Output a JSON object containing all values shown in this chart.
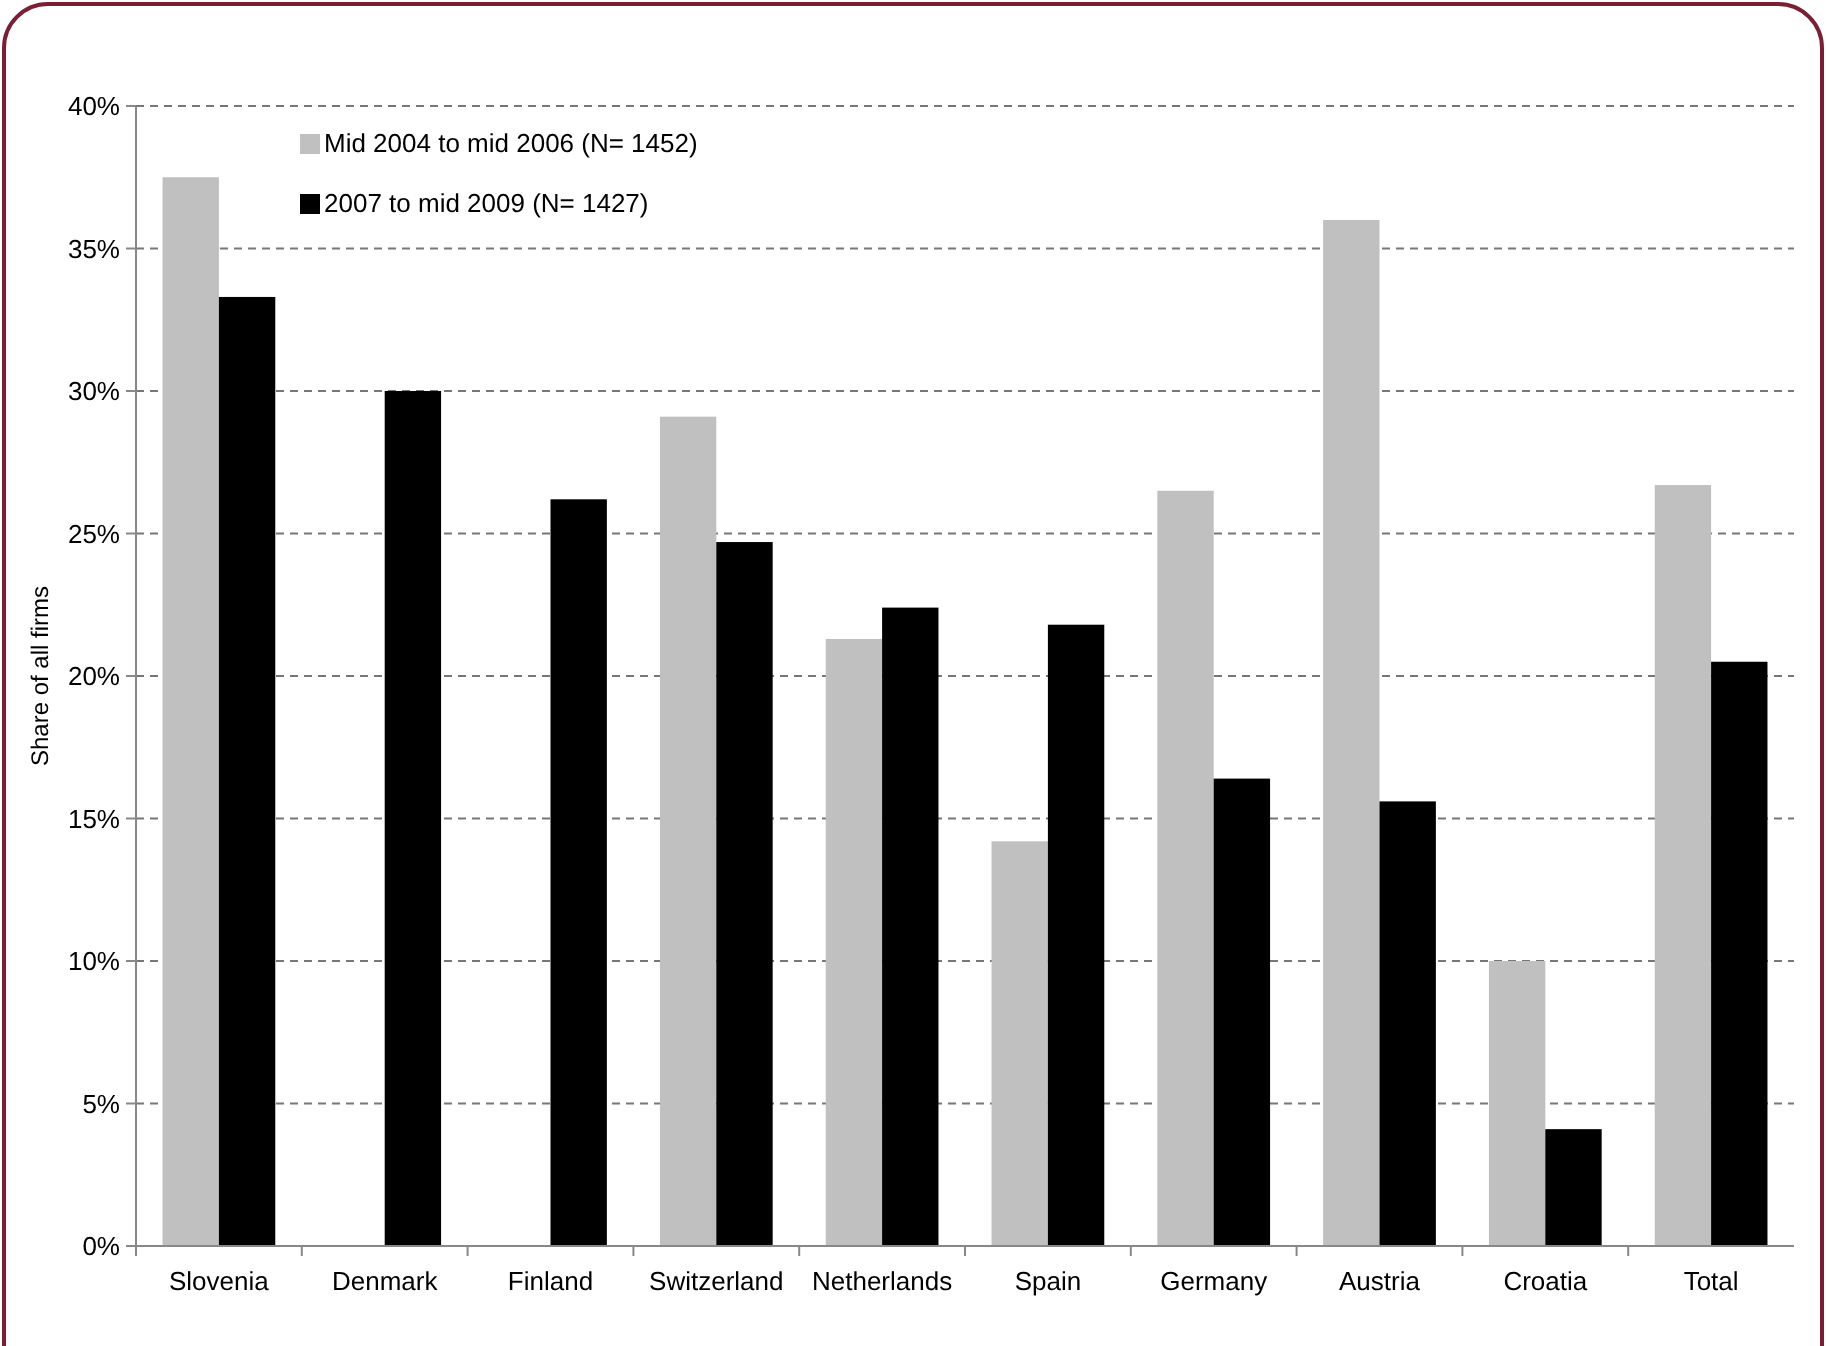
{
  "chart_data": {
    "type": "bar",
    "ylabel": "Share of all firms",
    "categories": [
      "Slovenia",
      "Denmark",
      "Finland",
      "Switzerland",
      "Netherlands",
      "Spain",
      "Germany",
      "Austria",
      "Croatia",
      "Total"
    ],
    "series": [
      {
        "name": "Mid 2004 to mid 2006 (N= 1452)",
        "color": "#c0c0c0",
        "values": [
          37.5,
          null,
          null,
          29.1,
          21.3,
          14.2,
          26.5,
          36.0,
          10.0,
          26.7
        ]
      },
      {
        "name": "2007 to mid 2009 (N= 1427)",
        "color": "#000000",
        "values": [
          33.3,
          30.0,
          26.2,
          24.7,
          22.4,
          21.8,
          16.4,
          15.6,
          4.1,
          20.5
        ]
      }
    ],
    "ylim": [
      0,
      40
    ],
    "yticks": [
      {
        "value": 0,
        "label": "0%"
      },
      {
        "value": 5,
        "label": "5%"
      },
      {
        "value": 10,
        "label": "10%"
      },
      {
        "value": 15,
        "label": "15%"
      },
      {
        "value": 20,
        "label": "20%"
      },
      {
        "value": 25,
        "label": "25%"
      },
      {
        "value": 30,
        "label": "30%"
      },
      {
        "value": 35,
        "label": "35%"
      },
      {
        "value": 40,
        "label": "40%"
      }
    ],
    "grid": "y",
    "legend": "top left"
  }
}
